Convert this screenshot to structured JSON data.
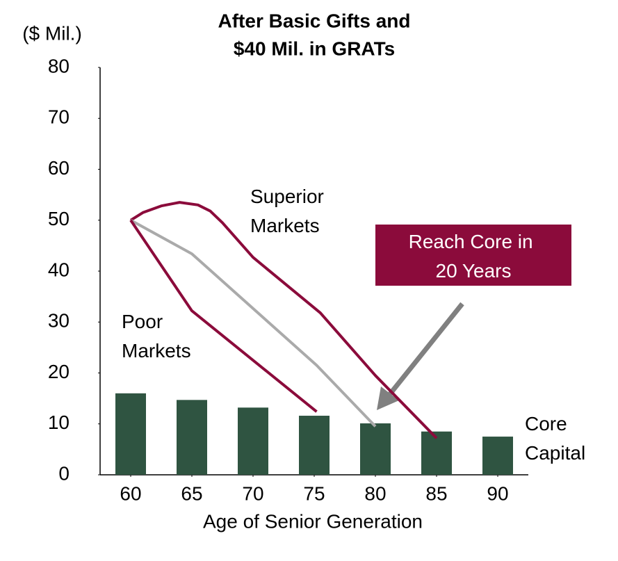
{
  "chart_data": {
    "type": "bar",
    "title": [
      "After Basic Gifts and",
      "$40 Mil. in GRATs"
    ],
    "y_unit_label": "($ Mil.)",
    "x_label": "Age of Senior Generation",
    "xlim": [
      57.5,
      92.5
    ],
    "xticks": [
      60,
      65,
      70,
      75,
      80,
      85,
      90
    ],
    "ylim": [
      0,
      80
    ],
    "yticks": [
      0,
      10,
      20,
      30,
      40,
      50,
      60,
      70,
      80
    ],
    "bars": {
      "name": "Core Capital",
      "color": "#2f5441",
      "x": [
        60,
        65,
        70,
        75,
        80,
        85,
        90
      ],
      "values": [
        16.0,
        14.7,
        13.2,
        11.6,
        10.1,
        8.5,
        7.5
      ]
    },
    "series": [
      {
        "name": "Superior Markets",
        "color": "#8b0b3b",
        "x": [
          60,
          61,
          62.5,
          64,
          65.5,
          66.5,
          67.5,
          70,
          75.5,
          80,
          85
        ],
        "values": [
          50,
          51.5,
          52.8,
          53.5,
          53,
          51.8,
          49.5,
          42.7,
          31.8,
          19.5,
          7.2
        ]
      },
      {
        "name": "Reach Core in 20 Years",
        "color": "#aaaaaa",
        "x": [
          60,
          65,
          75.2,
          80
        ],
        "values": [
          50,
          43.4,
          21.5,
          9.5
        ]
      },
      {
        "name": "Poor Markets",
        "color": "#8b0b3b",
        "x": [
          60,
          65,
          75.2
        ],
        "values": [
          50,
          32.2,
          12.4
        ]
      }
    ]
  }
}
